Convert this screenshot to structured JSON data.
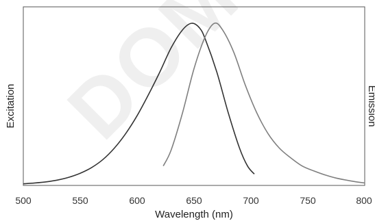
{
  "chart_data": {
    "type": "line",
    "title": "",
    "xlabel": "Wavelength (nm)",
    "ylabel_left": "Excitation",
    "ylabel_right": "Emission",
    "xlim": [
      500,
      800
    ],
    "ylim": [
      0,
      1
    ],
    "x_ticks": [
      500,
      550,
      600,
      650,
      700,
      750,
      800
    ],
    "grid": false,
    "legend": "none",
    "watermark": "DOMI",
    "series": [
      {
        "role": "excitation",
        "color": "#333333",
        "points": [
          [
            500,
            0.01
          ],
          [
            510,
            0.015
          ],
          [
            520,
            0.022
          ],
          [
            530,
            0.033
          ],
          [
            540,
            0.05
          ],
          [
            550,
            0.075
          ],
          [
            560,
            0.11
          ],
          [
            570,
            0.16
          ],
          [
            580,
            0.23
          ],
          [
            590,
            0.32
          ],
          [
            600,
            0.43
          ],
          [
            610,
            0.56
          ],
          [
            620,
            0.7
          ],
          [
            630,
            0.85
          ],
          [
            640,
            0.96
          ],
          [
            648,
            1.0
          ],
          [
            655,
            0.97
          ],
          [
            660,
            0.9
          ],
          [
            670,
            0.7
          ],
          [
            680,
            0.45
          ],
          [
            690,
            0.23
          ],
          [
            697,
            0.12
          ],
          [
            703,
            0.07
          ]
        ]
      },
      {
        "role": "emission",
        "color": "#7f7f7f",
        "points": [
          [
            623,
            0.12
          ],
          [
            630,
            0.22
          ],
          [
            640,
            0.45
          ],
          [
            650,
            0.72
          ],
          [
            660,
            0.92
          ],
          [
            668,
            1.0
          ],
          [
            675,
            0.96
          ],
          [
            685,
            0.82
          ],
          [
            695,
            0.62
          ],
          [
            705,
            0.45
          ],
          [
            715,
            0.32
          ],
          [
            725,
            0.23
          ],
          [
            735,
            0.17
          ],
          [
            745,
            0.12
          ],
          [
            755,
            0.09
          ],
          [
            765,
            0.065
          ],
          [
            775,
            0.045
          ],
          [
            790,
            0.025
          ],
          [
            800,
            0.015
          ]
        ]
      }
    ]
  }
}
